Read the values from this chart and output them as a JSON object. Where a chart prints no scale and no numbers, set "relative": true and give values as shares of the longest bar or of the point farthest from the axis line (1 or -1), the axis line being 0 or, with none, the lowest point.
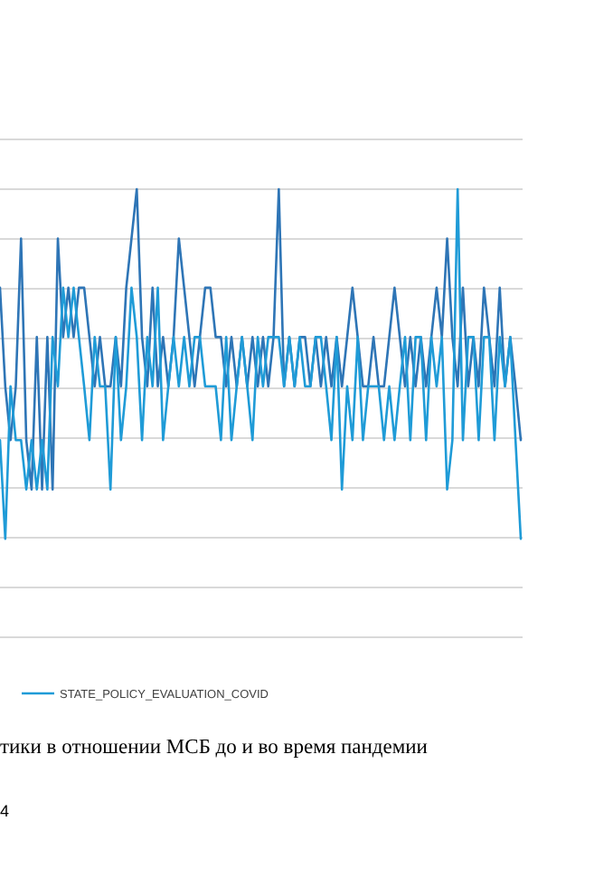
{
  "chart_data": {
    "type": "line",
    "relative": true,
    "grid": true,
    "legend": "bottom",
    "line_style": "solid",
    "categories": [
      null,
      null,
      null,
      null,
      null,
      null,
      null,
      null,
      null,
      null,
      null,
      null,
      null,
      null,
      null,
      null,
      null,
      null,
      null,
      null,
      null,
      null,
      null,
      null,
      null,
      null,
      null,
      null,
      null,
      null,
      null,
      null,
      null,
      null,
      null,
      null,
      null,
      null,
      null,
      null,
      null,
      null,
      null,
      null,
      null,
      null,
      null,
      null,
      null,
      null,
      null,
      null,
      null,
      null,
      null,
      null,
      null,
      null,
      null,
      null,
      null,
      null,
      null,
      null,
      null,
      null,
      null,
      null,
      null,
      null,
      null,
      null,
      null,
      null,
      null,
      null,
      null,
      null,
      null,
      null,
      null,
      null,
      null,
      null,
      null,
      null,
      null,
      null,
      null,
      null,
      null,
      null,
      null,
      null,
      null,
      null,
      null,
      null,
      null,
      null
    ],
    "series": [
      {
        "color": "#2e75b6",
        "values": [
          0.78,
          0.56,
          0.44,
          0.56,
          0.89,
          0.44,
          0.33,
          0.67,
          0.33,
          0.67,
          0.33,
          0.89,
          0.67,
          0.78,
          0.67,
          0.78,
          0.78,
          0.67,
          0.56,
          0.67,
          0.56,
          0.56,
          0.67,
          0.56,
          0.78,
          0.89,
          1,
          0.67,
          0.56,
          0.78,
          0.56,
          0.67,
          0.56,
          0.67,
          0.89,
          0.78,
          0.67,
          0.56,
          0.67,
          0.78,
          0.78,
          0.67,
          0.67,
          0.56,
          0.67,
          0.56,
          0.67,
          0.56,
          0.67,
          0.56,
          0.67,
          0.56,
          0.67,
          1,
          0.56,
          0.67,
          0.56,
          0.67,
          0.67,
          0.56,
          0.67,
          0.56,
          0.67,
          0.56,
          0.67,
          0.56,
          0.67,
          0.78,
          0.67,
          0.56,
          0.56,
          0.67,
          0.56,
          0.56,
          0.67,
          0.78,
          0.67,
          0.56,
          0.67,
          0.56,
          0.67,
          0.56,
          0.67,
          0.78,
          0.67,
          0.89,
          0.67,
          0.56,
          0.78,
          0.56,
          0.67,
          0.56,
          0.78,
          0.67,
          0.56,
          0.78,
          0.56,
          0.67,
          0.56,
          0.44
        ]
      },
      {
        "name": "STATE_POLICY_EVALUATION_COVID",
        "color": "#1f9bd7",
        "values": [
          0.44,
          0.22,
          0.56,
          0.44,
          0.44,
          0.33,
          0.44,
          0.33,
          0.44,
          0.33,
          0.67,
          0.56,
          0.78,
          0.67,
          0.78,
          0.67,
          0.56,
          0.44,
          0.67,
          0.56,
          0.56,
          0.33,
          0.67,
          0.44,
          0.56,
          0.78,
          0.67,
          0.44,
          0.67,
          0.56,
          0.78,
          0.44,
          0.56,
          0.67,
          0.56,
          0.67,
          0.56,
          0.67,
          0.67,
          0.56,
          0.56,
          0.56,
          0.44,
          0.67,
          0.44,
          0.56,
          0.67,
          0.56,
          0.44,
          0.67,
          0.56,
          0.67,
          0.67,
          0.67,
          0.56,
          0.67,
          0.56,
          0.67,
          0.56,
          0.56,
          0.67,
          0.67,
          0.56,
          0.44,
          0.67,
          0.33,
          0.56,
          0.44,
          0.67,
          0.44,
          0.56,
          0.56,
          0.56,
          0.44,
          0.56,
          0.44,
          0.56,
          0.67,
          0.44,
          0.67,
          0.67,
          0.44,
          0.67,
          0.56,
          0.67,
          0.33,
          0.44,
          1,
          0.44,
          0.67,
          0.67,
          0.44,
          0.67,
          0.67,
          0.44,
          0.67,
          0.56,
          0.67,
          0.44,
          0.22
        ]
      }
    ],
    "annotations": [
      "тики в отношении МСБ до и во время пандемии",
      "4"
    ]
  }
}
